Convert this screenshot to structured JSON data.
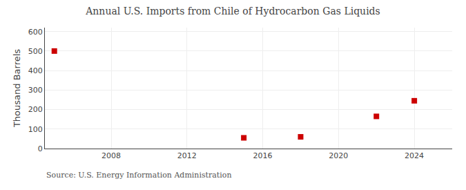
{
  "chart_data": {
    "type": "scatter",
    "title": "Annual U.S. Imports from Chile of Hydrocarbon Gas Liquids",
    "y_label": "Thousand Barrels",
    "annotations": [
      "Source: U.S. Energy Information Administration"
    ],
    "x": [
      2005,
      2015,
      2018,
      2022,
      2024
    ],
    "values": [
      500,
      55,
      60,
      165,
      245
    ],
    "color": "#cc0000",
    "marker": "square",
    "xlim": [
      2004.5,
      2026
    ],
    "xticks": [
      2008,
      2012,
      2016,
      2020,
      2024
    ],
    "ylim": [
      0,
      620
    ],
    "yticks": [
      0,
      100,
      200,
      300,
      400,
      500,
      600
    ],
    "grid": true
  }
}
